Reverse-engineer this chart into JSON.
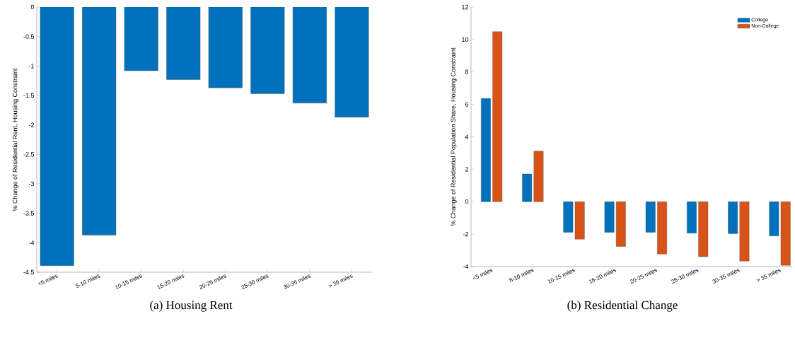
{
  "chart_data": [
    {
      "type": "bar",
      "title": "(a) Housing Rent",
      "ylabel": "% Change of Residential Rent, Housing Constraint",
      "categories": [
        "<5 miles",
        "5-10 miles",
        "10-15 miles",
        "15-20 miles",
        "20-25 miles",
        "25-30 miles",
        "30-35 miles",
        "> 35 miles"
      ],
      "values": [
        -4.39,
        -3.87,
        -1.08,
        -1.23,
        -1.37,
        -1.47,
        -1.63,
        -1.87
      ],
      "color": "#0072bd",
      "ylim": [
        -4.5,
        0
      ],
      "yticks": [
        -4.5,
        -4,
        -3.5,
        -3,
        -2.5,
        -2,
        -1.5,
        -1,
        -0.5,
        0
      ],
      "grid": false,
      "legend": false
    },
    {
      "type": "bar",
      "title": "(b) Residential Change",
      "ylabel": "% Change of Residential Population Share, Housing Constraint",
      "categories": [
        "<5 miles",
        "5-10 miles",
        "10-15 miles",
        "15-20 miles",
        "20-25 miles",
        "25-30 miles",
        "30-35 miles",
        "> 35 miles"
      ],
      "series": [
        {
          "name": "College",
          "color": "#0072bd",
          "values": [
            6.37,
            1.71,
            -1.89,
            -1.89,
            -1.89,
            -1.94,
            -1.97,
            -2.11
          ]
        },
        {
          "name": "Non-College",
          "color": "#d95319",
          "values": [
            10.48,
            3.12,
            -2.31,
            -2.76,
            -3.23,
            -3.39,
            -3.66,
            -3.92
          ]
        }
      ],
      "ylim": [
        -4,
        12
      ],
      "yticks": [
        -4,
        -2,
        0,
        2,
        4,
        6,
        8,
        10,
        12
      ],
      "grid": false,
      "legend": "top right"
    }
  ]
}
